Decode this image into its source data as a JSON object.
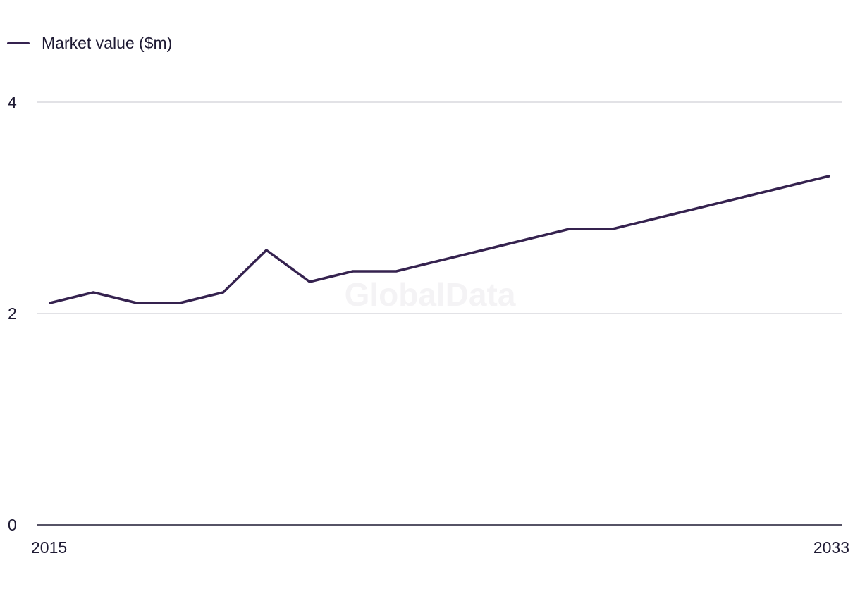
{
  "legend": {
    "label": "Market value ($m)"
  },
  "watermark": "GlobalData",
  "colors": {
    "series": "#35224f",
    "grid": "#d9d9de",
    "axis": "#1e1a33"
  },
  "chart_data": {
    "type": "line",
    "x": [
      2015,
      2016,
      2017,
      2018,
      2019,
      2020,
      2021,
      2022,
      2023,
      2024,
      2025,
      2026,
      2027,
      2028,
      2029,
      2030,
      2031,
      2032,
      2033
    ],
    "series": [
      {
        "name": "Market value ($m)",
        "values": [
          2.1,
          2.2,
          2.1,
          2.1,
          2.2,
          2.6,
          2.3,
          2.4,
          2.4,
          2.5,
          2.6,
          2.7,
          2.8,
          2.8,
          2.9,
          3.0,
          3.1,
          3.2,
          3.3
        ]
      }
    ],
    "ylim": [
      0,
      4
    ],
    "yticks": [
      0,
      2,
      4
    ],
    "xtick_labels": [
      "2015",
      "2033"
    ],
    "grid": true,
    "legend_position": "top-left",
    "title": "",
    "xlabel": "",
    "ylabel": ""
  }
}
